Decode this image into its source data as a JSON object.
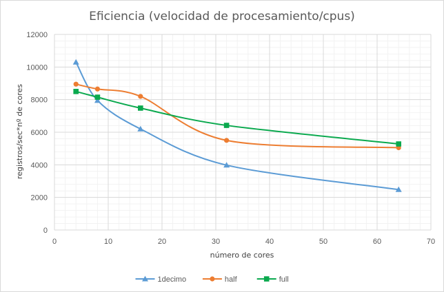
{
  "chart_data": {
    "type": "scatter",
    "title": "Eficiencia (velocidad de procesamiento/cpus)",
    "xlabel": "número de cores",
    "ylabel": "registros/sec*nº de cores",
    "xlim": [
      0,
      70
    ],
    "ylim": [
      0,
      12000
    ],
    "x_ticks": [
      0,
      10,
      20,
      30,
      40,
      50,
      60,
      70
    ],
    "y_ticks": [
      0,
      2000,
      4000,
      6000,
      8000,
      10000,
      12000
    ],
    "grid": {
      "major": true,
      "minor": true
    },
    "legend_position": "bottom",
    "smooth_lines": true,
    "series": [
      {
        "name": "1decimo",
        "color": "#5b9bd5",
        "marker": "triangle",
        "x": [
          4,
          8,
          16,
          32,
          64
        ],
        "y": [
          10300,
          7950,
          6200,
          3980,
          2480
        ]
      },
      {
        "name": "half",
        "color": "#ed7d31",
        "marker": "circle",
        "x": [
          4,
          8,
          16,
          32,
          64
        ],
        "y": [
          8950,
          8650,
          8200,
          5500,
          5050
        ]
      },
      {
        "name": "full",
        "color": "#0aa94e",
        "marker": "square",
        "x": [
          4,
          8,
          16,
          32,
          64
        ],
        "y": [
          8500,
          8150,
          7480,
          6420,
          5280
        ]
      }
    ]
  }
}
